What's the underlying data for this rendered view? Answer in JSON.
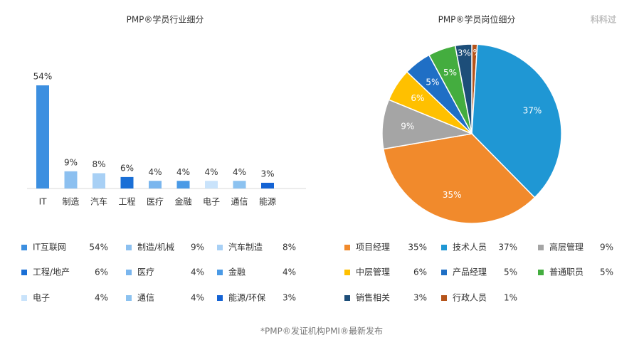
{
  "chart_data": [
    {
      "type": "bar",
      "title": "PMP®学员行业细分",
      "categories": [
        "IT",
        "制造",
        "汽车",
        "工程",
        "医疗",
        "金融",
        "电子",
        "通信",
        "能源"
      ],
      "values": [
        54,
        9,
        8,
        6,
        4,
        4,
        4,
        4,
        3
      ],
      "value_labels": [
        "54%",
        "9%",
        "8%",
        "6%",
        "4%",
        "4%",
        "4%",
        "4%",
        "3%"
      ],
      "colors": [
        "#3c8fe0",
        "#8cc0f0",
        "#a8d0f5",
        "#1a6fd6",
        "#7ab6ee",
        "#4a9ae6",
        "#c9e3fb",
        "#8cc2f0",
        "#1463d4"
      ],
      "legend_labels": [
        "IT互联网",
        "制造/机械",
        "汽车制造",
        "工程/地产",
        "医疗",
        "金融",
        "电子",
        "通信",
        "能源/环保"
      ]
    },
    {
      "type": "pie",
      "title": "PMP®学员岗位细分",
      "categories": [
        "行政人员",
        "技术人员",
        "项目经理",
        "高层管理",
        "中层管理",
        "产品经理",
        "普通职员",
        "销售相关"
      ],
      "values": [
        1,
        37,
        35,
        9,
        6,
        5,
        5,
        3
      ],
      "value_labels": [
        "1%",
        "37%",
        "35%",
        "9%",
        "6%",
        "5%",
        "5%",
        "3%"
      ],
      "colors": [
        "#b5541b",
        "#1f97d4",
        "#f18a2c",
        "#a5a5a5",
        "#ffc000",
        "#1f6fc5",
        "#44ad3f",
        "#1d4e79"
      ]
    }
  ],
  "watermark": "科科过",
  "footnote": "*PMP®发证机构PMI®最新发布"
}
